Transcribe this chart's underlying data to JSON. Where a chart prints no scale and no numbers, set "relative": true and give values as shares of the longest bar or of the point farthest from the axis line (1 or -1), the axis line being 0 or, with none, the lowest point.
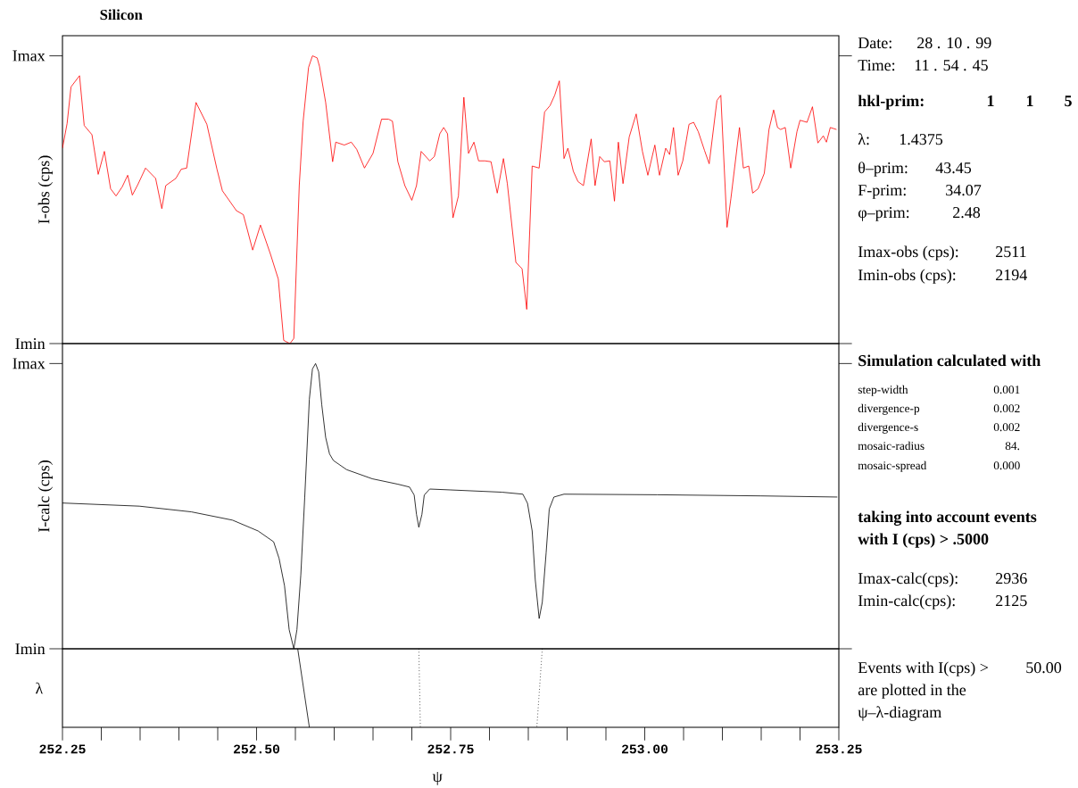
{
  "chart_data": [
    {
      "type": "line",
      "title": "Silicon",
      "ylabel": "I-obs (cps)",
      "xlim": [
        252.25,
        253.25
      ],
      "relative": true,
      "annotations": [
        "Imax",
        "Imin"
      ],
      "x": [
        252.25,
        252.256,
        252.261,
        252.272,
        252.278,
        252.288,
        252.296,
        252.304,
        252.312,
        252.319,
        252.327,
        252.334,
        252.34,
        252.347,
        252.357,
        252.37,
        252.378,
        252.383,
        252.396,
        252.403,
        252.41,
        252.422,
        252.436,
        252.449,
        252.456,
        252.474,
        252.483,
        252.495,
        252.505,
        252.518,
        252.528,
        252.535,
        252.543,
        252.548,
        252.555,
        252.56,
        252.567,
        252.572,
        252.578,
        252.581,
        252.589,
        252.598,
        252.602,
        252.613,
        252.622,
        252.629,
        252.639,
        252.65,
        252.661,
        252.67,
        252.675,
        252.682,
        252.691,
        252.7,
        252.706,
        252.712,
        252.723,
        252.729,
        252.736,
        252.741,
        252.746,
        252.753,
        252.76,
        252.767,
        252.773,
        252.78,
        252.786,
        252.794,
        252.802,
        252.81,
        252.818,
        252.823,
        252.834,
        252.842,
        252.848,
        252.855,
        252.864,
        252.871,
        252.878,
        252.884,
        252.89,
        252.896,
        252.901,
        252.908,
        252.914,
        252.921,
        252.931,
        252.936,
        252.942,
        252.948,
        252.955,
        252.961,
        252.966,
        252.972,
        252.98,
        252.989,
        252.997,
        253.004,
        253.013,
        253.019,
        253.027,
        253.032,
        253.037,
        253.043,
        253.049,
        253.057,
        253.063,
        253.069,
        253.077,
        253.083,
        253.093,
        253.098,
        253.106,
        253.111,
        253.122,
        253.127,
        253.134,
        253.139,
        253.146,
        253.154,
        253.16,
        253.166,
        253.171,
        253.175,
        253.181,
        253.188,
        253.196,
        253.2,
        253.204,
        253.209,
        253.216,
        253.223,
        253.23,
        253.234,
        253.239,
        253.247
      ],
      "series": [
        {
          "color": "#ff0000",
          "values": [
            0.679,
            0.765,
            0.892,
            0.931,
            0.758,
            0.726,
            0.588,
            0.668,
            0.538,
            0.513,
            0.545,
            0.585,
            0.516,
            0.552,
            0.61,
            0.574,
            0.469,
            0.549,
            0.574,
            0.606,
            0.61,
            0.838,
            0.762,
            0.606,
            0.531,
            0.462,
            0.448,
            0.325,
            0.412,
            0.31,
            0.224,
            0.011,
            0.0,
            0.018,
            0.549,
            0.773,
            0.96,
            1.0,
            0.993,
            0.964,
            0.838,
            0.632,
            0.7,
            0.69,
            0.7,
            0.675,
            0.61,
            0.661,
            0.78,
            0.78,
            0.773,
            0.632,
            0.549,
            0.498,
            0.549,
            0.668,
            0.635,
            0.65,
            0.729,
            0.751,
            0.729,
            0.437,
            0.513,
            0.856,
            0.661,
            0.7,
            0.635,
            0.635,
            0.632,
            0.523,
            0.643,
            0.556,
            0.282,
            0.26,
            0.119,
            0.617,
            0.61,
            0.805,
            0.827,
            0.863,
            0.913,
            0.643,
            0.679,
            0.599,
            0.563,
            0.549,
            0.711,
            0.549,
            0.65,
            0.632,
            0.635,
            0.495,
            0.7,
            0.556,
            0.718,
            0.798,
            0.668,
            0.585,
            0.69,
            0.585,
            0.679,
            0.657,
            0.751,
            0.585,
            0.635,
            0.762,
            0.769,
            0.736,
            0.671,
            0.625,
            0.845,
            0.863,
            0.404,
            0.505,
            0.751,
            0.61,
            0.617,
            0.523,
            0.538,
            0.592,
            0.744,
            0.812,
            0.751,
            0.744,
            0.751,
            0.61,
            0.736,
            0.776,
            0.773,
            0.769,
            0.823,
            0.697,
            0.722,
            0.7,
            0.751,
            0.744
          ]
        }
      ]
    },
    {
      "type": "line",
      "ylabel": "I-calc (cps)",
      "xlim": [
        252.25,
        253.25
      ],
      "relative": true,
      "annotations": [
        "Imax",
        "Imin"
      ],
      "x": [
        252.25,
        252.349,
        252.416,
        252.469,
        252.502,
        252.522,
        252.529,
        252.536,
        252.542,
        252.548,
        252.552,
        252.557,
        252.562,
        252.568,
        252.572,
        252.576,
        252.58,
        252.584,
        252.589,
        252.594,
        252.599,
        252.616,
        252.649,
        252.682,
        252.697,
        252.703,
        252.706,
        252.709,
        252.713,
        252.716,
        252.723,
        252.749,
        252.816,
        252.843,
        252.849,
        252.855,
        252.859,
        252.864,
        252.868,
        252.873,
        252.877,
        252.883,
        252.896,
        253.016,
        253.149,
        253.248
      ],
      "series": [
        {
          "color": "#000000",
          "values": [
            0.511,
            0.5,
            0.48,
            0.451,
            0.413,
            0.375,
            0.317,
            0.221,
            0.067,
            0.0,
            0.067,
            0.259,
            0.529,
            0.875,
            0.981,
            1.0,
            0.971,
            0.855,
            0.741,
            0.683,
            0.66,
            0.628,
            0.596,
            0.577,
            0.567,
            0.539,
            0.471,
            0.426,
            0.471,
            0.539,
            0.56,
            0.557,
            0.549,
            0.542,
            0.51,
            0.413,
            0.241,
            0.106,
            0.163,
            0.337,
            0.49,
            0.532,
            0.542,
            0.54,
            0.536,
            0.532
          ]
        }
      ]
    },
    {
      "type": "line",
      "relative": true,
      "ylabel": "λ",
      "xlabel": "ψ",
      "xlim": [
        252.25,
        253.25
      ],
      "tick_labels": "x",
      "xticks": [
        {
          "value": 252.25,
          "label": "252.25"
        },
        {
          "value": 252.3,
          "label": null
        },
        {
          "value": 252.35,
          "label": null
        },
        {
          "value": 252.4,
          "label": null
        },
        {
          "value": 252.45,
          "label": null
        },
        {
          "value": 252.5,
          "label": "252.50"
        },
        {
          "value": 252.55,
          "label": null
        },
        {
          "value": 252.6,
          "label": null
        },
        {
          "value": 252.65,
          "label": null
        },
        {
          "value": 252.7,
          "label": null
        },
        {
          "value": 252.75,
          "label": "252.75"
        },
        {
          "value": 252.8,
          "label": null
        },
        {
          "value": 252.85,
          "label": null
        },
        {
          "value": 252.9,
          "label": null
        },
        {
          "value": 252.95,
          "label": null
        },
        {
          "value": 253.0,
          "label": "253.00"
        },
        {
          "value": 253.05,
          "label": null
        },
        {
          "value": 253.1,
          "label": null
        },
        {
          "value": 253.15,
          "label": null
        },
        {
          "value": 253.2,
          "label": null
        },
        {
          "value": 253.25,
          "label": "253.25"
        }
      ],
      "series": [
        {
          "color": "#000000",
          "line_style": "solid",
          "x": [
            252.553,
            252.568
          ],
          "values": [
            1,
            0
          ]
        },
        {
          "color": "#000000",
          "line_style": "dotted",
          "x": [
            252.709,
            252.711
          ],
          "values": [
            1,
            0
          ]
        },
        {
          "color": "#000000",
          "line_style": "dotted",
          "x": [
            252.868,
            252.861
          ],
          "values": [
            1,
            0
          ]
        }
      ]
    },
    {
      "type": "other",
      "annotations": [
        "Date:",
        "28 . 10 . 99",
        "Time:",
        "11 . 54 . 45",
        "hkl-prim:",
        "1",
        "1",
        "5",
        "λ:",
        "1.4375",
        "θ–prim:",
        "43.45",
        "F-prim:",
        "34.07",
        "φ–prim:",
        "2.48",
        "Imax-obs (cps):",
        "2511",
        "Imin-obs (cps):",
        "2194",
        "Simulation calculated with",
        "step-width",
        "0.001",
        "divergence-p",
        "0.002",
        "divergence-s",
        "0.002",
        "mosaic-radius",
        "84.",
        "mosaic-spread",
        "0.000",
        "taking into account events",
        "with I (cps) >  .5000",
        "Imax-calc(cps):",
        "2936",
        "Imin-calc(cps):",
        "2125",
        "Events with I(cps) >",
        "50.00",
        "are plotted in the",
        "ψ–λ-diagram"
      ]
    }
  ]
}
